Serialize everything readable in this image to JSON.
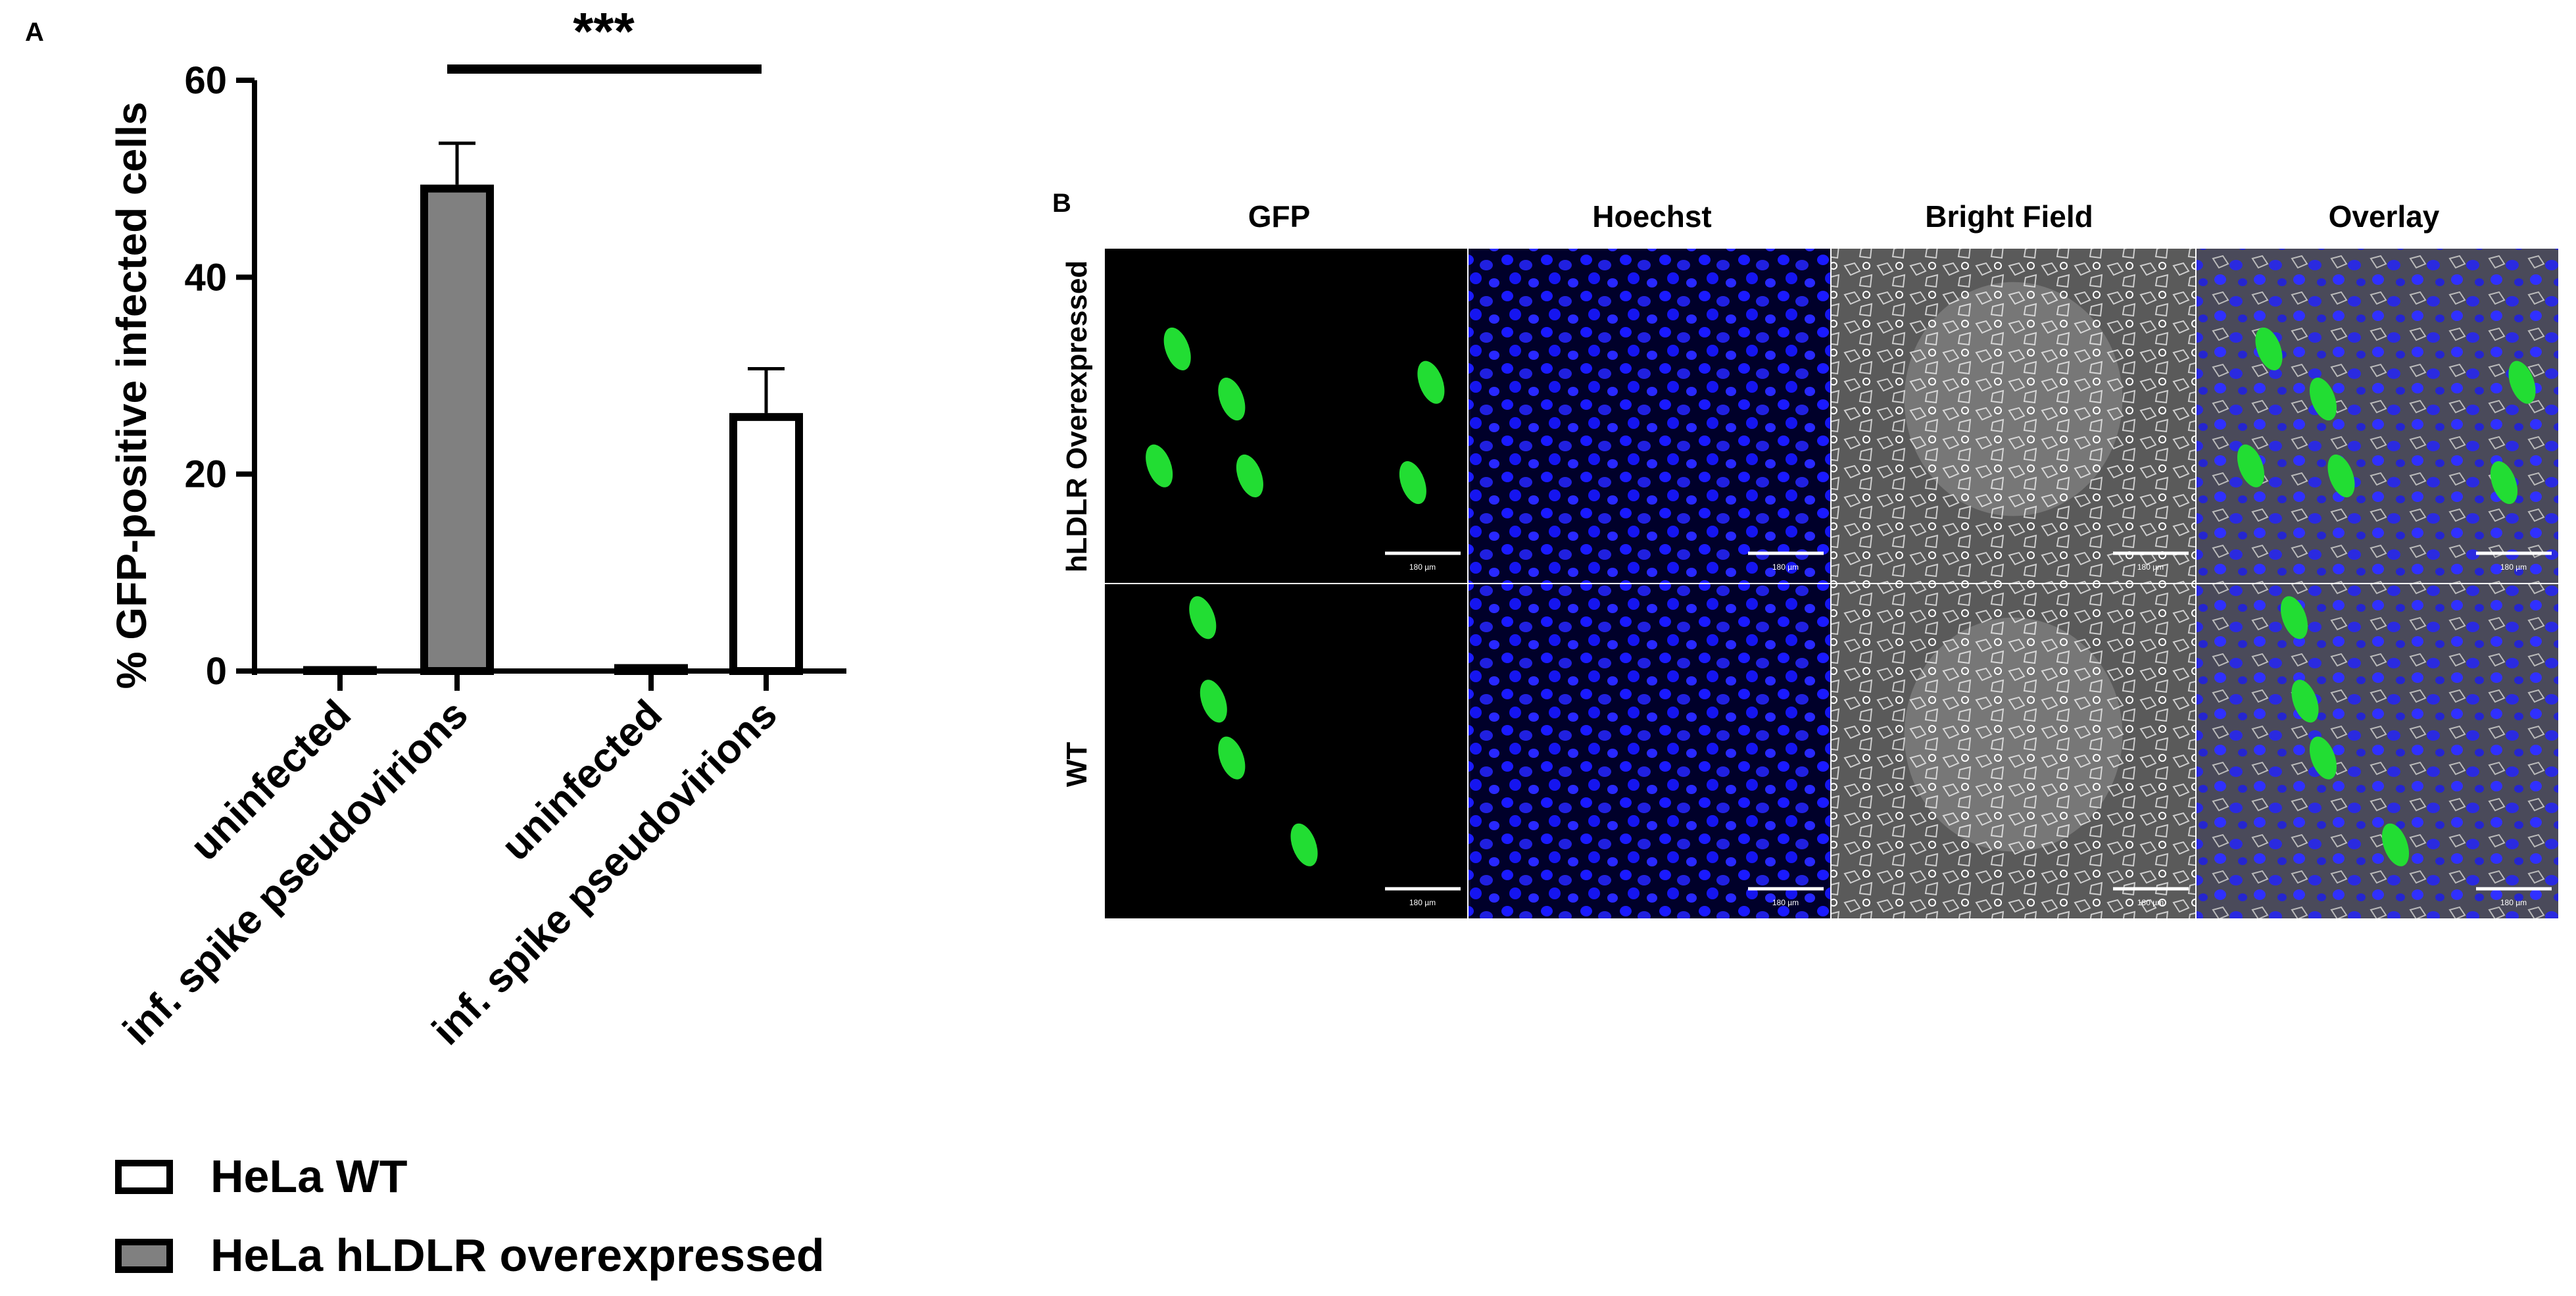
{
  "panel_a": {
    "label": "A"
  },
  "panel_b": {
    "label": "B",
    "columns": [
      "GFP",
      "Hoechst",
      "Bright Field",
      "Overlay"
    ],
    "rows": [
      "hLDLR Overexpressed",
      "WT"
    ],
    "scale_label": "180 µm"
  },
  "chart_data": {
    "type": "bar",
    "ylabel": "% GFP-positive infected cells",
    "categories": [
      "uninfected",
      "inf. spike pseudovirions",
      "uninfected",
      "inf. spike pseudovirions"
    ],
    "series": [
      {
        "name": "HeLa WT",
        "color": "#ffffff",
        "values": [
          null,
          null,
          0.3,
          25.8
        ],
        "errors": [
          null,
          null,
          null,
          4.9
        ]
      },
      {
        "name": "HeLa hLDLR overexpressed",
        "color": "#808080",
        "values": [
          0.1,
          49,
          null,
          null
        ],
        "errors": [
          null,
          4.6,
          null,
          null
        ]
      }
    ],
    "ylim": [
      0,
      60
    ],
    "yticks": [
      0,
      20,
      40,
      60
    ],
    "annotation": "***"
  }
}
